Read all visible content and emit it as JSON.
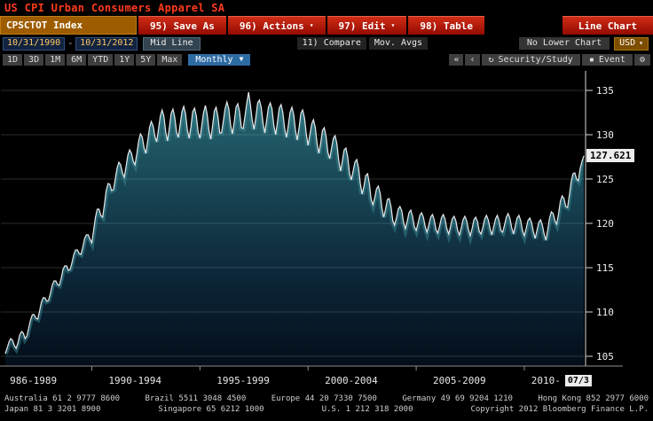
{
  "icons": {
    "dropdown_small": "▾",
    "dropdown": "▼",
    "nav_first": "«",
    "nav_prev": "‹",
    "study": "↻",
    "event": "▪",
    "gear": "⚙"
  },
  "header": {
    "title": "US CPI Urban Consumers Apparel SA",
    "security_field": "CPSCTOT Index",
    "menu_buttons": [
      {
        "label": "95) Save As",
        "arrow": false
      },
      {
        "label": "96) Actions",
        "arrow": true
      },
      {
        "label": "97) Edit",
        "arrow": true
      },
      {
        "label": "98) Table",
        "arrow": false
      }
    ],
    "chart_type_label": "Line Chart"
  },
  "toolbar": {
    "date_from": "10/31/1990",
    "date_separator": "-",
    "date_to": "10/31/2012",
    "line_style": "Mid Line",
    "compare_label": "11) Compare",
    "mov_avgs_label": "Mov. Avgs",
    "lower_chart_label": "No Lower Chart",
    "currency": "USD",
    "ranges": [
      "1D",
      "3D",
      "1M",
      "6M",
      "YTD",
      "1Y",
      "5Y",
      "Max"
    ],
    "period": "Monthly",
    "study_label": "Security/Study",
    "event_label": "Event"
  },
  "chart_data": {
    "type": "area",
    "title": "US CPI Urban Consumers Apparel SA",
    "xlabel": "",
    "ylabel": "",
    "start_year": 1986,
    "points_per_year": 12,
    "ylim": [
      104,
      137
    ],
    "y_ticks": [
      105,
      110,
      115,
      120,
      125,
      130,
      135
    ],
    "x_labels": [
      "986-1989",
      "1990-1994",
      "1995-1999",
      "2000-2004",
      "2005-2009",
      "2010-"
    ],
    "x_label_years": [
      1987.3,
      1992,
      1997,
      2002,
      2007,
      2011
    ],
    "x_tick_years": [
      1990,
      1995,
      2000,
      2005,
      2010
    ],
    "x_end_label": "07/3",
    "x_end_year": 2012.5,
    "last_value": 127.621,
    "last_value_label": "127.621",
    "line_color": "#e8e8e8",
    "glow_color": "#35828e",
    "fill_top_color": "#2c6f7a",
    "fill_bottom_color": "#040e1a",
    "values": [
      105.3,
      105.9,
      106.6,
      107.0,
      106.8,
      106.2,
      105.9,
      106.5,
      107.4,
      107.8,
      107.6,
      107.0,
      107.3,
      108.2,
      109.1,
      109.7,
      109.7,
      109.3,
      109.2,
      110.1,
      111.1,
      111.6,
      111.6,
      111.2,
      111.3,
      112.1,
      113.0,
      113.5,
      113.5,
      113.1,
      113.0,
      113.8,
      114.8,
      115.2,
      115.2,
      114.7,
      114.8,
      115.6,
      116.5,
      117.0,
      117.0,
      116.6,
      116.5,
      117.3,
      118.3,
      118.7,
      118.7,
      118.2,
      117.8,
      119.2,
      120.7,
      121.6,
      121.6,
      120.9,
      120.7,
      122.1,
      123.7,
      124.5,
      124.4,
      123.7,
      123.8,
      125.0,
      126.2,
      126.9,
      126.6,
      125.7,
      125.2,
      126.4,
      127.7,
      128.3,
      127.9,
      127.0,
      126.6,
      127.9,
      129.3,
      130.1,
      129.7,
      128.5,
      127.9,
      129.3,
      130.8,
      131.5,
      131.0,
      129.8,
      129.2,
      130.6,
      132.1,
      132.8,
      132.1,
      130.3,
      129.3,
      130.7,
      132.4,
      132.9,
      132.0,
      130.3,
      129.7,
      131.1,
      132.6,
      133.2,
      132.4,
      130.6,
      129.6,
      130.9,
      132.6,
      133.0,
      132.1,
      130.3,
      129.6,
      131.0,
      132.5,
      133.3,
      132.3,
      130.5,
      129.5,
      131.0,
      132.7,
      133.1,
      132.0,
      130.2,
      130.2,
      131.6,
      133.0,
      133.7,
      132.9,
      131.1,
      130.1,
      131.4,
      133.1,
      133.5,
      132.6,
      130.8,
      130.7,
      132.1,
      133.6,
      134.8,
      133.4,
      131.6,
      130.6,
      131.9,
      133.6,
      133.9,
      133.1,
      131.3,
      130.2,
      131.6,
      133.1,
      133.6,
      132.9,
      131.1,
      130.0,
      131.4,
      133.0,
      133.4,
      132.5,
      130.7,
      129.7,
      131.0,
      132.5,
      133.1,
      132.3,
      130.5,
      129.4,
      130.8,
      132.4,
      132.8,
      131.9,
      130.1,
      128.8,
      130.0,
      131.2,
      131.7,
      130.8,
      129.0,
      127.9,
      129.1,
      130.5,
      130.8,
      129.8,
      128.0,
      127.3,
      128.4,
      129.6,
      129.9,
      129.0,
      127.1,
      125.9,
      127.0,
      128.3,
      128.5,
      127.5,
      125.6,
      124.9,
      125.9,
      126.9,
      127.2,
      126.3,
      124.5,
      123.3,
      124.2,
      125.4,
      125.6,
      124.5,
      122.7,
      122.1,
      122.9,
      123.9,
      124.2,
      123.4,
      121.7,
      120.7,
      121.6,
      122.7,
      122.8,
      121.9,
      120.3,
      119.8,
      120.6,
      121.6,
      121.9,
      121.4,
      120.1,
      119.4,
      120.2,
      121.2,
      121.5,
      120.8,
      119.6,
      119.2,
      120.0,
      120.9,
      121.2,
      120.7,
      119.6,
      119.0,
      119.8,
      120.7,
      121.0,
      120.4,
      119.3,
      118.9,
      119.7,
      120.6,
      121.0,
      120.5,
      119.4,
      118.8,
      119.6,
      120.5,
      120.8,
      120.3,
      119.2,
      118.7,
      119.5,
      120.4,
      120.8,
      120.3,
      119.3,
      118.6,
      119.4,
      120.4,
      120.7,
      120.2,
      119.1,
      118.8,
      119.6,
      120.5,
      120.9,
      120.4,
      119.4,
      118.7,
      119.6,
      120.5,
      120.9,
      120.3,
      119.2,
      119.0,
      119.8,
      120.7,
      121.1,
      120.6,
      119.5,
      118.8,
      119.7,
      120.6,
      120.9,
      120.3,
      119.2,
      118.6,
      119.4,
      120.3,
      120.6,
      120.1,
      119.1,
      118.3,
      119.2,
      120.1,
      120.4,
      119.8,
      118.8,
      118.1,
      119.3,
      120.6,
      121.3,
      121.1,
      120.3,
      119.9,
      121.1,
      122.5,
      123.1,
      122.8,
      121.9,
      121.8,
      123.2,
      124.7,
      125.6,
      125.7,
      125.0,
      124.8,
      126.2,
      127.0,
      127.621
    ]
  },
  "footer": {
    "line1_segments": [
      "Australia 61 2 9777 8600",
      "Brazil 5511 3048 4500",
      "Europe 44 20 7330 7500",
      "Germany 49 69 9204 1210",
      "Hong Kong 852 2977 6000"
    ],
    "line2_segments": [
      "Japan 81 3 3201 8900",
      "Singapore 65 6212 1000",
      "U.S. 1 212 318 2000",
      "Copyright 2012 Bloomberg Finance L.P."
    ]
  }
}
